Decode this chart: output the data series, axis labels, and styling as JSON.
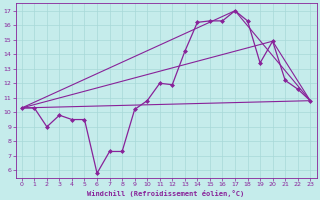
{
  "xlabel": "Windchill (Refroidissement éolien,°C)",
  "xlim": [
    -0.5,
    23.5
  ],
  "ylim": [
    5.5,
    17.5
  ],
  "xticks": [
    0,
    1,
    2,
    3,
    4,
    5,
    6,
    7,
    8,
    9,
    10,
    11,
    12,
    13,
    14,
    15,
    16,
    17,
    18,
    19,
    20,
    21,
    22,
    23
  ],
  "yticks": [
    6,
    7,
    8,
    9,
    10,
    11,
    12,
    13,
    14,
    15,
    16,
    17
  ],
  "bg_color": "#c5eceb",
  "grid_color": "#a8d8d8",
  "line_color": "#882299",
  "line1_x": [
    0,
    1,
    2,
    3,
    4,
    5,
    6,
    7,
    8,
    9,
    10,
    11,
    12,
    13,
    14,
    15,
    16,
    17,
    18,
    19,
    20,
    21,
    22,
    23
  ],
  "line1_y": [
    10.3,
    10.3,
    9.0,
    9.8,
    9.5,
    9.5,
    5.8,
    7.3,
    7.3,
    10.2,
    10.8,
    12.0,
    11.9,
    14.2,
    16.2,
    16.3,
    16.3,
    17.0,
    16.3,
    13.4,
    14.9,
    12.2,
    11.6,
    10.8
  ],
  "line2_x": [
    0,
    23
  ],
  "line2_y": [
    10.3,
    10.8
  ],
  "line3_x": [
    0,
    20,
    23
  ],
  "line3_y": [
    10.3,
    14.9,
    10.8
  ],
  "line4_x": [
    0,
    17,
    23
  ],
  "line4_y": [
    10.3,
    17.0,
    10.8
  ]
}
